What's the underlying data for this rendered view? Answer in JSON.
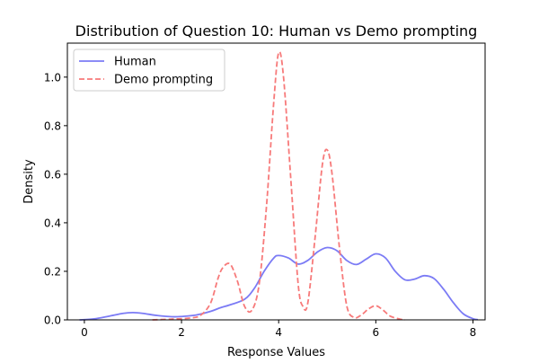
{
  "chart_data": {
    "type": "line",
    "title": "Distribution of Question 10: Human vs Demo prompting",
    "xlabel": "Response Values",
    "ylabel": "Density",
    "xlim": [
      -0.35,
      8.25
    ],
    "ylim": [
      0,
      1.14
    ],
    "xticks": [
      0,
      2,
      4,
      6,
      8
    ],
    "yticks": [
      0.0,
      0.2,
      0.4,
      0.6,
      0.8,
      1.0
    ],
    "xtick_labels": [
      "0",
      "2",
      "4",
      "6",
      "8"
    ],
    "ytick_labels": [
      "0.0",
      "0.2",
      "0.4",
      "0.6",
      "0.8",
      "1.0"
    ],
    "grid": false,
    "legend": "top-left",
    "series": [
      {
        "name": "Human",
        "color": "#7b7bf5",
        "style": "solid",
        "x": [
          -0.1,
          0.2,
          0.5,
          0.8,
          1.0,
          1.2,
          1.5,
          1.8,
          2.0,
          2.3,
          2.6,
          2.8,
          3.0,
          3.3,
          3.5,
          3.7,
          3.9,
          4.0,
          4.2,
          4.4,
          4.6,
          4.8,
          5.0,
          5.2,
          5.4,
          5.6,
          5.8,
          6.0,
          6.2,
          6.4,
          6.6,
          6.8,
          7.0,
          7.2,
          7.4,
          7.6,
          7.8,
          8.0,
          8.1
        ],
        "y": [
          0.0,
          0.004,
          0.015,
          0.027,
          0.03,
          0.027,
          0.018,
          0.013,
          0.014,
          0.02,
          0.035,
          0.05,
          0.062,
          0.085,
          0.13,
          0.2,
          0.255,
          0.265,
          0.255,
          0.23,
          0.245,
          0.28,
          0.298,
          0.285,
          0.245,
          0.228,
          0.25,
          0.272,
          0.255,
          0.2,
          0.165,
          0.168,
          0.182,
          0.17,
          0.125,
          0.07,
          0.025,
          0.005,
          0.001
        ]
      },
      {
        "name": "Demo prompting",
        "color": "#f77a7a",
        "style": "dashed",
        "x": [
          1.4,
          1.8,
          2.2,
          2.4,
          2.6,
          2.75,
          2.85,
          3.0,
          3.15,
          3.3,
          3.45,
          3.6,
          3.75,
          3.9,
          4.0,
          4.1,
          4.25,
          4.4,
          4.5,
          4.6,
          4.75,
          4.9,
          5.0,
          5.1,
          5.25,
          5.4,
          5.55,
          5.7,
          5.85,
          6.0,
          6.15,
          6.3,
          6.5,
          6.6
        ],
        "y": [
          0.0,
          0.003,
          0.008,
          0.02,
          0.07,
          0.17,
          0.215,
          0.23,
          0.16,
          0.055,
          0.04,
          0.15,
          0.47,
          0.9,
          1.1,
          1.0,
          0.58,
          0.15,
          0.055,
          0.07,
          0.34,
          0.64,
          0.7,
          0.6,
          0.3,
          0.06,
          0.01,
          0.02,
          0.045,
          0.058,
          0.04,
          0.015,
          0.003,
          0.0
        ]
      }
    ]
  }
}
